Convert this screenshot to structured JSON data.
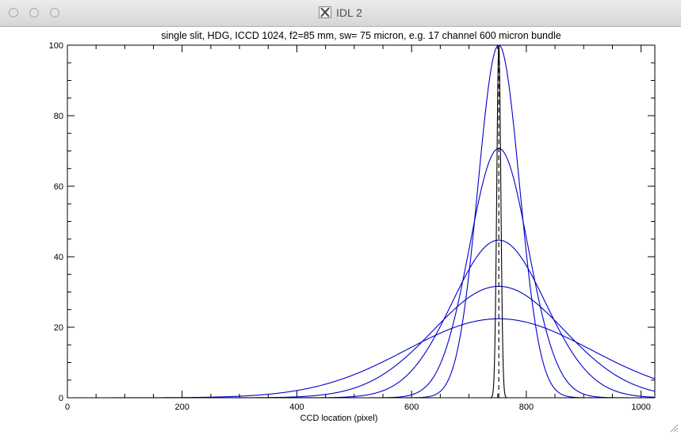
{
  "window": {
    "title": "IDL 2",
    "app_icon": "x11-icon",
    "buttons": [
      "close",
      "minimize",
      "zoom"
    ]
  },
  "chart_data": {
    "type": "line",
    "title": "single slit, HDG, ICCD 1024, f2=85 mm, sw= 75 micron, e.g. 17 channel 600 micron bundle",
    "xlabel": "CCD location (pixel)",
    "ylabel": "",
    "xlim": [
      0,
      1024
    ],
    "ylim": [
      0,
      100
    ],
    "x_ticks": [
      0,
      200,
      400,
      600,
      800,
      1000
    ],
    "y_ticks": [
      0,
      20,
      40,
      60,
      80,
      100
    ],
    "grid": false,
    "legend": "none",
    "series": [
      {
        "color": "#0000cc",
        "style": "solid",
        "type": "gaussian",
        "center": 752,
        "peak": 100,
        "sigma": 36
      },
      {
        "color": "#0000cc",
        "style": "solid",
        "type": "gaussian",
        "center": 752,
        "peak": 70.7,
        "sigma": 51
      },
      {
        "color": "#0000cc",
        "style": "solid",
        "type": "gaussian",
        "center": 752,
        "peak": 44.7,
        "sigma": 81
      },
      {
        "color": "#0000cc",
        "style": "solid",
        "type": "gaussian",
        "center": 752,
        "peak": 31.6,
        "sigma": 114
      },
      {
        "color": "#0000cc",
        "style": "solid",
        "type": "gaussian",
        "center": 752,
        "peak": 22.4,
        "sigma": 161
      },
      {
        "color": "#000000",
        "style": "solid",
        "type": "gaussian",
        "center": 752,
        "peak": 100,
        "sigma": 3.5
      },
      {
        "color": "#000000",
        "style": "dashed",
        "type": "vline",
        "x": 752,
        "y": [
          0,
          100
        ]
      }
    ]
  }
}
